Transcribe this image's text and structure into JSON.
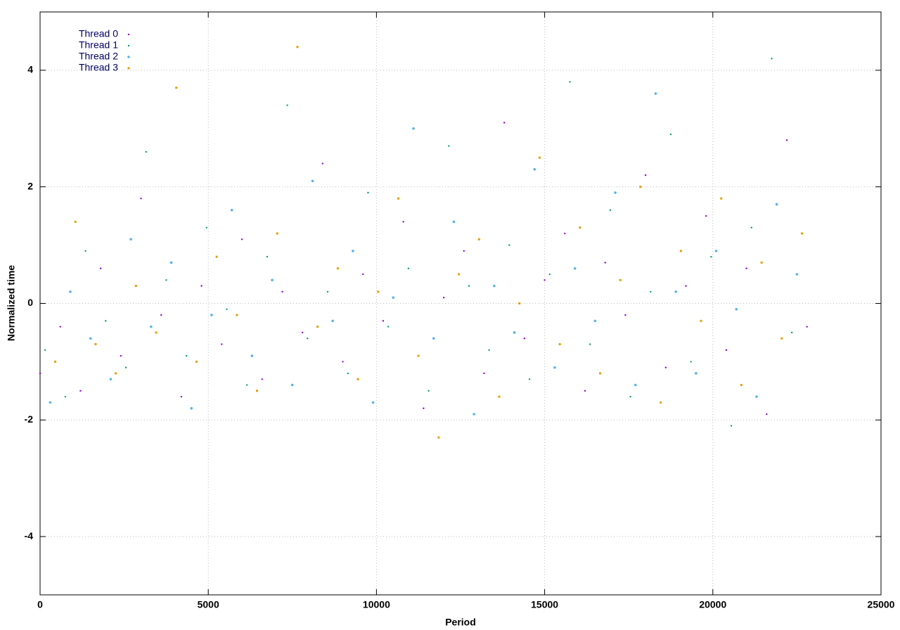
{
  "chart_data": {
    "type": "scatter",
    "xlabel": "Period",
    "ylabel": "Normalized time",
    "xlim": [
      0,
      25000
    ],
    "ylim": [
      -5,
      5
    ],
    "xticks": [
      0,
      5000,
      10000,
      15000,
      20000,
      25000
    ],
    "yticks": [
      -4,
      -2,
      0,
      2,
      4
    ],
    "grid": true,
    "legend": "top-left",
    "series": [
      {
        "name": "Thread 0",
        "color": "#9400d3",
        "marker": "dot",
        "x": [
          0,
          600,
          1200,
          1800,
          2400,
          3000,
          3600,
          4200,
          4800,
          5400,
          6000,
          6600,
          7200,
          7800,
          8400,
          9000,
          9600,
          10200,
          10800,
          11400,
          12000,
          12600,
          13200,
          13800,
          14400,
          15000,
          15600,
          16200,
          16800,
          17400,
          18000,
          18600,
          19200,
          19800,
          20400,
          21000,
          21600,
          22200,
          22800
        ],
        "values": [
          -1.2,
          -0.4,
          -1.5,
          0.6,
          -0.9,
          1.8,
          -0.2,
          -1.6,
          0.3,
          -0.7,
          1.1,
          -1.3,
          0.2,
          -0.5,
          2.4,
          -1.0,
          0.5,
          -0.3,
          1.4,
          -1.8,
          0.1,
          0.9,
          -1.2,
          3.1,
          -0.6,
          0.4,
          1.2,
          -1.5,
          0.7,
          -0.2,
          2.2,
          -1.1,
          0.3,
          1.5,
          -0.8,
          0.6,
          -1.9,
          2.8,
          -0.4
        ]
      },
      {
        "name": "Thread 1",
        "color": "#009e73",
        "marker": "dot",
        "x": [
          150,
          750,
          1350,
          1950,
          2550,
          3150,
          3750,
          4350,
          4950,
          5550,
          6150,
          6750,
          7350,
          7950,
          8550,
          9150,
          9750,
          10350,
          10950,
          11550,
          12150,
          12750,
          13350,
          13950,
          14550,
          15150,
          15750,
          16350,
          16950,
          17550,
          18150,
          18750,
          19350,
          19950,
          20550,
          21150,
          21750,
          22350
        ],
        "values": [
          -0.8,
          -1.6,
          0.9,
          -0.3,
          -1.1,
          2.6,
          0.4,
          -0.9,
          1.3,
          -0.1,
          -1.4,
          0.8,
          3.4,
          -0.6,
          0.2,
          -1.2,
          1.9,
          -0.4,
          0.6,
          -1.5,
          2.7,
          0.3,
          -0.8,
          1.0,
          -1.3,
          0.5,
          3.8,
          -0.7,
          1.6,
          -1.6,
          0.2,
          2.9,
          -1.0,
          0.8,
          -2.1,
          1.3,
          4.2,
          -0.5
        ]
      },
      {
        "name": "Thread 2",
        "color": "#56b4e9",
        "marker": "circle",
        "x": [
          300,
          900,
          1500,
          2100,
          2700,
          3300,
          3900,
          4500,
          5100,
          5700,
          6300,
          6900,
          7500,
          8100,
          8700,
          9300,
          9900,
          10500,
          11100,
          11700,
          12300,
          12900,
          13500,
          14100,
          14700,
          15300,
          15900,
          16500,
          17100,
          17700,
          18300,
          18900,
          19500,
          20100,
          20700,
          21300,
          21900,
          22500
        ],
        "values": [
          -1.7,
          0.2,
          -0.6,
          -1.3,
          1.1,
          -0.4,
          0.7,
          -1.8,
          -0.2,
          1.6,
          -0.9,
          0.4,
          -1.4,
          2.1,
          -0.3,
          0.9,
          -1.7,
          0.1,
          3.0,
          -0.6,
          1.4,
          -1.9,
          0.3,
          -0.5,
          2.3,
          -1.1,
          0.6,
          -0.3,
          1.9,
          -1.4,
          3.6,
          0.2,
          -1.2,
          0.9,
          -0.1,
          -1.6,
          1.7,
          0.5
        ]
      },
      {
        "name": "Thread 3",
        "color": "#e69f00",
        "marker": "square",
        "x": [
          450,
          1050,
          1650,
          2250,
          2850,
          3450,
          4050,
          4650,
          5250,
          5850,
          6450,
          7050,
          7650,
          8250,
          8850,
          9450,
          10050,
          10650,
          11250,
          11850,
          12450,
          13050,
          13650,
          14250,
          14850,
          15450,
          16050,
          16650,
          17250,
          17850,
          18450,
          19050,
          19650,
          20250,
          20850,
          21450,
          22050,
          22650
        ],
        "values": [
          -1.0,
          1.4,
          -0.7,
          -1.2,
          0.3,
          -0.5,
          3.7,
          -1.0,
          0.8,
          -0.2,
          -1.5,
          1.2,
          4.4,
          -0.4,
          0.6,
          -1.3,
          0.2,
          1.8,
          -0.9,
          -2.3,
          0.5,
          1.1,
          -1.6,
          0.0,
          2.5,
          -0.7,
          1.3,
          -1.2,
          0.4,
          2.0,
          -1.7,
          0.9,
          -0.3,
          1.8,
          -1.4,
          0.7,
          -0.6,
          1.2
        ]
      }
    ]
  }
}
